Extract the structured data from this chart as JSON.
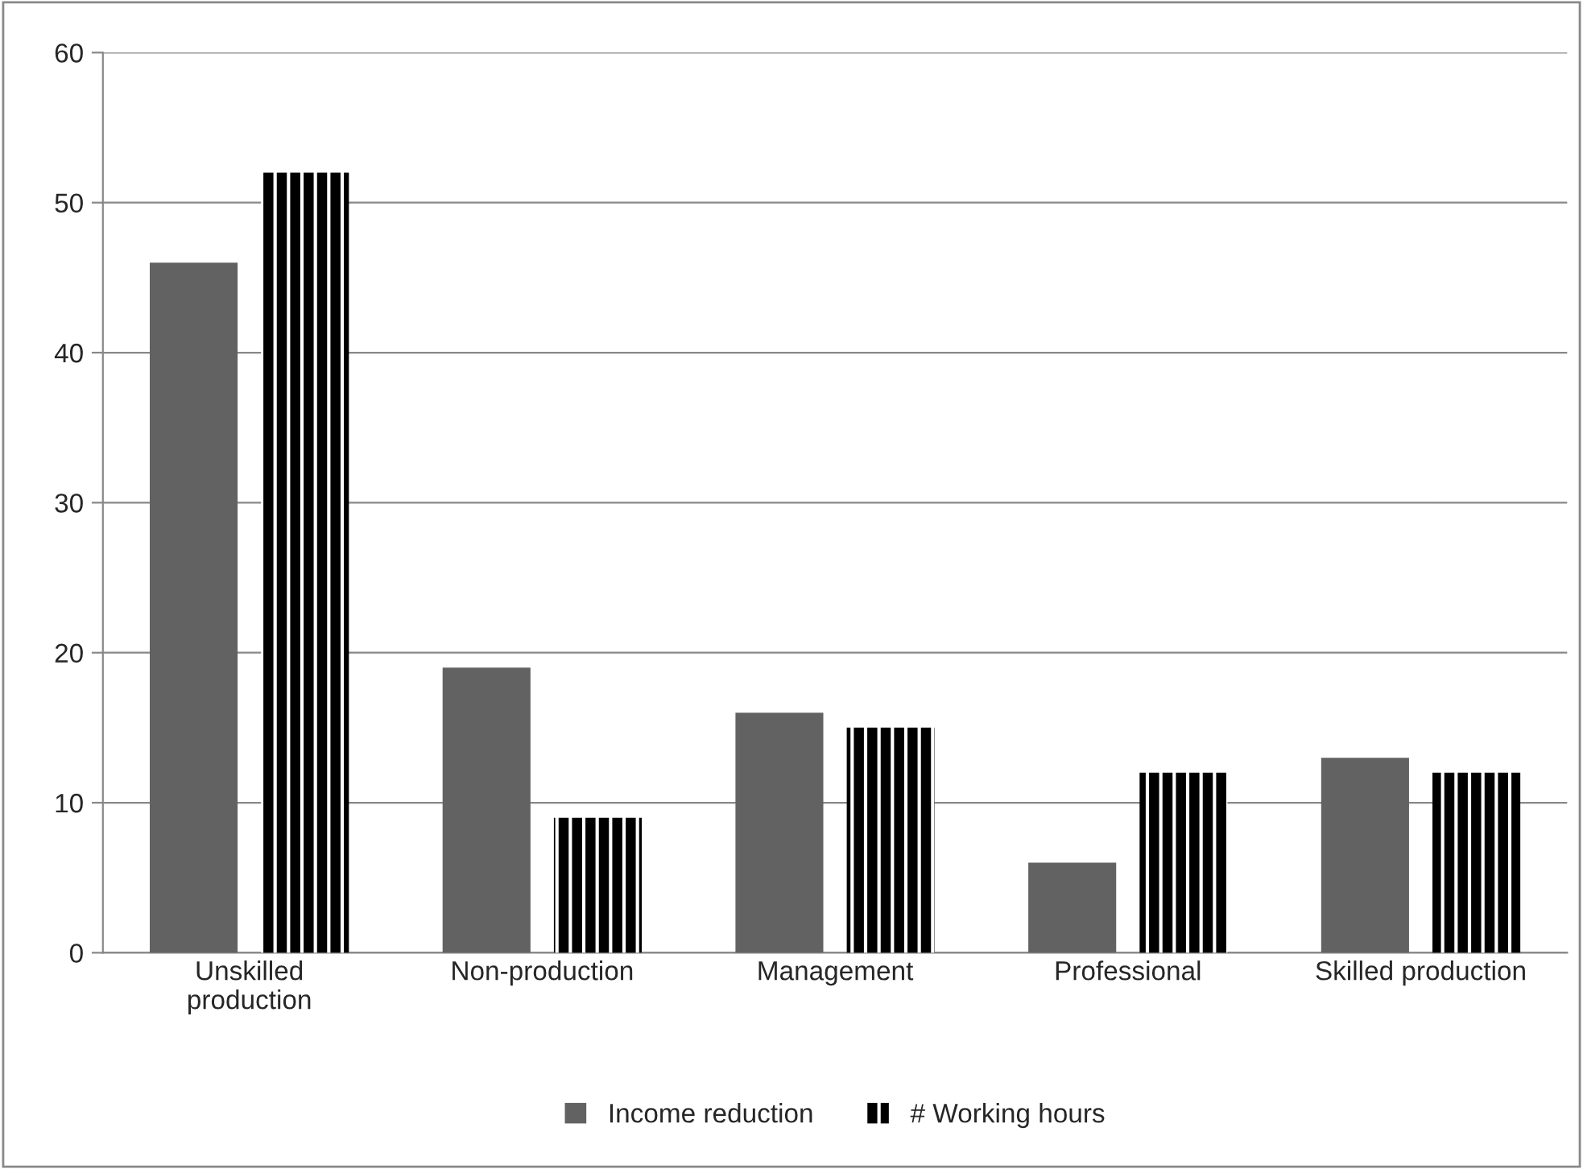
{
  "chart_data": {
    "type": "bar",
    "categories": [
      "Unskilled\nproduction",
      "Non-production",
      "Management",
      "Professional",
      "Skilled production"
    ],
    "series": [
      {
        "name": "Income reduction",
        "color": "#626262",
        "values": [
          46,
          19,
          16,
          6,
          13
        ]
      },
      {
        "name": "# Working hours",
        "color": "#000000",
        "values": [
          52,
          9,
          15,
          12,
          12
        ]
      }
    ],
    "ylim": [
      0,
      60
    ],
    "yticks": [
      0,
      10,
      20,
      30,
      40,
      50,
      60
    ],
    "grid": "y",
    "legend": "bottom"
  }
}
